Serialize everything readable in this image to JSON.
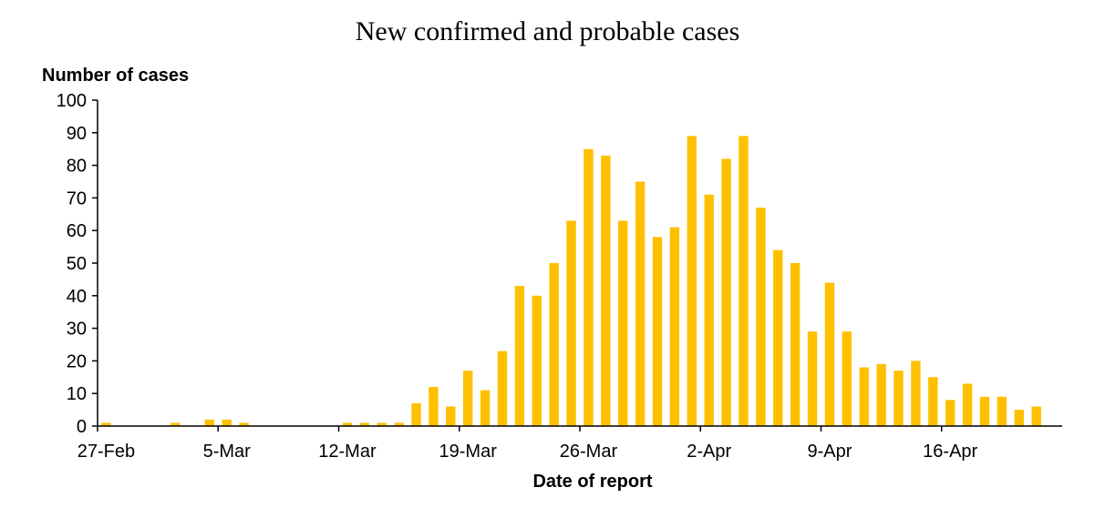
{
  "chart_data": {
    "type": "bar",
    "title": "New confirmed and probable cases",
    "ylabel": "Number of cases",
    "xlabel": "Date of report",
    "ylim": [
      0,
      100
    ],
    "yticks": [
      0,
      10,
      20,
      30,
      40,
      50,
      60,
      70,
      80,
      90,
      100
    ],
    "xtick_labels": [
      {
        "index": 0,
        "label": "27-Feb"
      },
      {
        "index": 7,
        "label": "5-Mar"
      },
      {
        "index": 14,
        "label": "12-Mar"
      },
      {
        "index": 21,
        "label": "19-Mar"
      },
      {
        "index": 28,
        "label": "26-Mar"
      },
      {
        "index": 35,
        "label": "2-Apr"
      },
      {
        "index": 42,
        "label": "9-Apr"
      },
      {
        "index": 49,
        "label": "16-Apr"
      }
    ],
    "categories": [
      "27-Feb",
      "28-Feb",
      "29-Feb",
      "1-Mar",
      "2-Mar",
      "3-Mar",
      "4-Mar",
      "5-Mar",
      "6-Mar",
      "7-Mar",
      "8-Mar",
      "9-Mar",
      "10-Mar",
      "11-Mar",
      "12-Mar",
      "13-Mar",
      "14-Mar",
      "15-Mar",
      "16-Mar",
      "17-Mar",
      "18-Mar",
      "19-Mar",
      "20-Mar",
      "21-Mar",
      "22-Mar",
      "23-Mar",
      "24-Mar",
      "25-Mar",
      "26-Mar",
      "27-Mar",
      "28-Mar",
      "29-Mar",
      "30-Mar",
      "31-Mar",
      "1-Apr",
      "2-Apr",
      "3-Apr",
      "4-Apr",
      "5-Apr",
      "6-Apr",
      "7-Apr",
      "8-Apr",
      "9-Apr",
      "10-Apr",
      "11-Apr",
      "12-Apr",
      "13-Apr",
      "14-Apr",
      "15-Apr",
      "16-Apr",
      "17-Apr",
      "18-Apr",
      "19-Apr",
      "20-Apr",
      "21-Apr",
      "22-Apr"
    ],
    "values": [
      1,
      0,
      0,
      0,
      1,
      0,
      2,
      2,
      1,
      0,
      0,
      0,
      0,
      0,
      1,
      1,
      1,
      1,
      7,
      12,
      6,
      17,
      11,
      23,
      43,
      40,
      50,
      63,
      85,
      83,
      63,
      75,
      58,
      61,
      89,
      71,
      82,
      89,
      67,
      54,
      50,
      29,
      44,
      29,
      18,
      19,
      17,
      20,
      15,
      8,
      13,
      9,
      9,
      5,
      6,
      0
    ],
    "bar_color": "#FFC000"
  }
}
